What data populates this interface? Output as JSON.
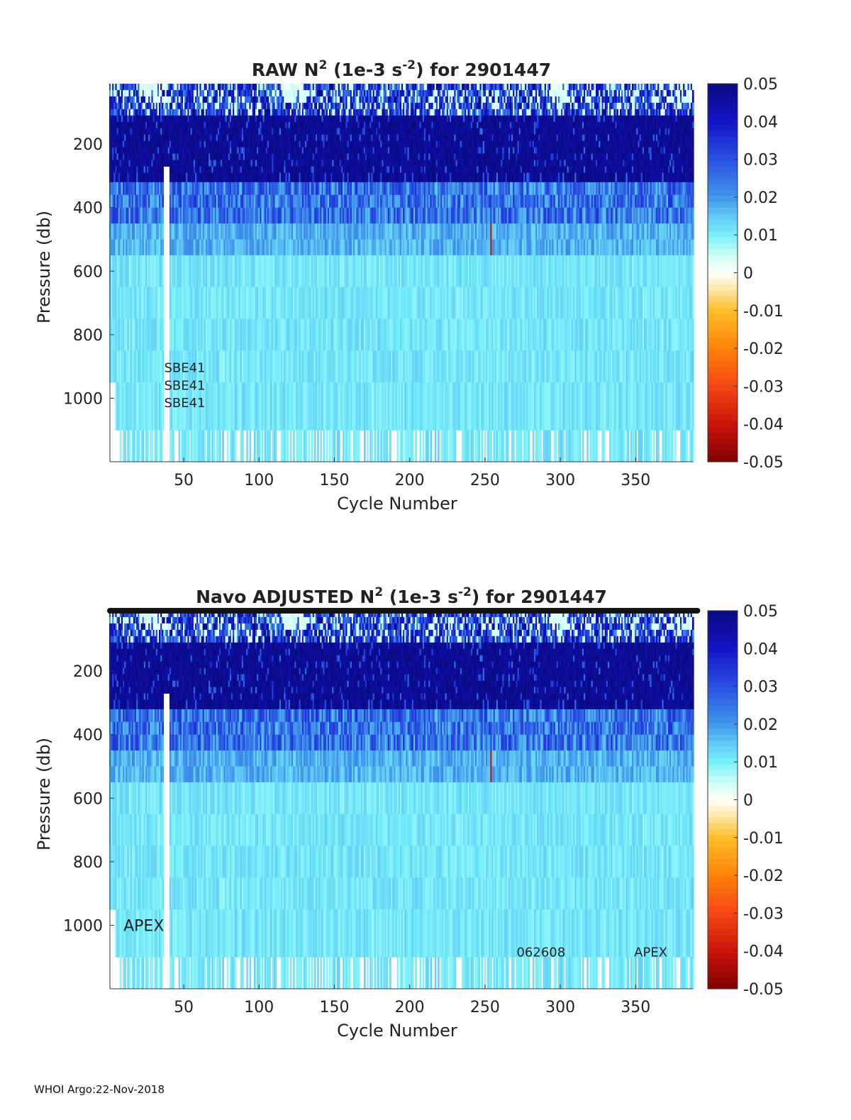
{
  "chart_data": [
    {
      "type": "heatmap",
      "id": "raw",
      "title_pre": "RAW N",
      "title_mid": " (1e-3 s",
      "title_post": ") for 2901447",
      "superscript_n": "2",
      "superscript_s": "-2",
      "xlabel": "Cycle Number",
      "ylabel": "Pressure (db)",
      "xlim": [
        1,
        388
      ],
      "ylim": [
        1200,
        10
      ],
      "xticks": [
        50,
        100,
        150,
        200,
        250,
        300,
        350
      ],
      "yticks": [
        200,
        400,
        600,
        800,
        1000
      ],
      "clim": [
        -0.05,
        0.05
      ],
      "colorbar_ticks": [
        "0.05",
        "0.04",
        "0.03",
        "0.02",
        "0.01",
        "0",
        "-0.01",
        "-0.02",
        "-0.03",
        "-0.04",
        "-0.05"
      ],
      "annotations": [
        {
          "text": "SBE41",
          "x": 37,
          "y": 900
        },
        {
          "text": "SBE41",
          "x": 37,
          "y": 955
        },
        {
          "text": "SBE41",
          "x": 37,
          "y": 1010
        }
      ],
      "pressure_levels": [
        10,
        30,
        50,
        70,
        90,
        110,
        130,
        150,
        170,
        190,
        210,
        230,
        250,
        270,
        290,
        320,
        360,
        400,
        450,
        500,
        550,
        650,
        750,
        850,
        950,
        1100
      ],
      "layer_value_description": "surface ~0.02-0.05 with near-zero patches, 100-300 db ~0.05, 300-450 db ~0.02-0.03, 450-1100 db ~0.008-0.012",
      "anomaly": {
        "cycle": 254,
        "pressure_range": [
          430,
          540
        ],
        "value": -0.04
      }
    },
    {
      "type": "heatmap",
      "id": "adjusted",
      "title_pre": "Navo  ADJUSTED N",
      "title_mid": " (1e-3 s",
      "title_post": ") for 2901447",
      "superscript_n": "2",
      "superscript_s": "-2",
      "xlabel": "Cycle Number",
      "ylabel": "Pressure (db)",
      "xlim": [
        1,
        388
      ],
      "ylim": [
        1200,
        10
      ],
      "xticks": [
        50,
        100,
        150,
        200,
        250,
        300,
        350
      ],
      "yticks": [
        200,
        400,
        600,
        800,
        1000
      ],
      "clim": [
        -0.05,
        0.05
      ],
      "colorbar_ticks": [
        "0.05",
        "0.04",
        "0.03",
        "0.02",
        "0.01",
        "0",
        "-0.01",
        "-0.02",
        "-0.03",
        "-0.04",
        "-0.05"
      ],
      "annotations": [
        {
          "text": "APEX",
          "x": 10,
          "y": 1000,
          "size": "large"
        },
        {
          "text": "062608",
          "x": 271,
          "y": 1080
        },
        {
          "text": "APEX",
          "x": 349,
          "y": 1080
        }
      ],
      "pressure_levels": [
        10,
        30,
        50,
        70,
        90,
        110,
        130,
        150,
        170,
        190,
        210,
        230,
        250,
        270,
        290,
        320,
        360,
        400,
        450,
        500,
        550,
        650,
        750,
        850,
        950,
        1100
      ],
      "layer_value_description": "surface ~0.02-0.05 with near-zero patches, 100-300 db ~0.05, 300-450 db ~0.02-0.03, 450-1100 db ~0.008-0.012",
      "anomaly": {
        "cycle": 254,
        "pressure_range": [
          430,
          540
        ],
        "value": -0.04
      }
    }
  ],
  "footer": "WHOI Argo:22-Nov-2018"
}
